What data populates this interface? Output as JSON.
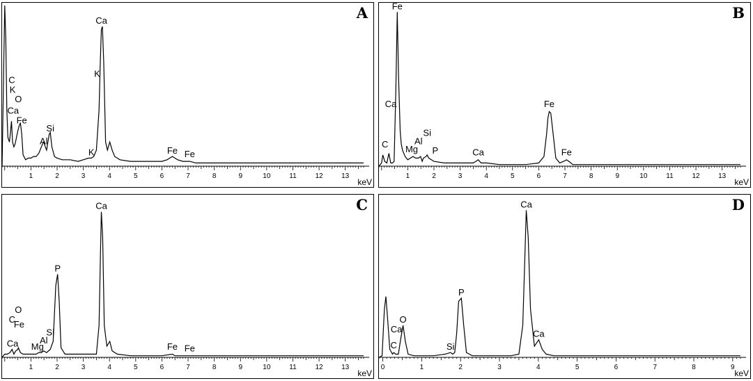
{
  "chart_data": [
    {
      "type": "line",
      "panel_label": "A",
      "xlabel": "keV",
      "xlim": [
        -0.1,
        13.7
      ],
      "ylim": [
        0,
        1.0
      ],
      "xticks": [
        1,
        2,
        3,
        4,
        5,
        6,
        7,
        8,
        9,
        10,
        11,
        12,
        13
      ],
      "series": [
        {
          "x": [
            -0.1,
            0.0,
            0.04,
            0.08,
            0.12,
            0.18,
            0.22,
            0.26,
            0.3,
            0.35,
            0.4,
            0.45,
            0.5,
            0.55,
            0.6,
            0.65,
            0.7,
            0.8,
            0.9,
            1.0,
            1.1,
            1.2,
            1.3,
            1.4,
            1.45,
            1.49,
            1.55,
            1.6,
            1.65,
            1.7,
            1.74,
            1.8,
            1.9,
            2.0,
            2.2,
            2.5,
            2.8,
            3.0,
            3.2,
            3.31,
            3.4,
            3.5,
            3.6,
            3.65,
            3.69,
            3.73,
            3.78,
            3.85,
            3.92,
            4.01,
            4.1,
            4.2,
            4.4,
            4.8,
            5.2,
            5.6,
            6.0,
            6.2,
            6.3,
            6.4,
            6.5,
            6.6,
            6.8,
            7.06,
            7.3,
            7.6,
            8.0,
            9.0,
            10.0,
            11.0,
            12.0,
            13.0,
            13.7
          ],
          "values": [
            0.0,
            1.0,
            0.8,
            0.35,
            0.18,
            0.15,
            0.21,
            0.28,
            0.15,
            0.12,
            0.14,
            0.18,
            0.22,
            0.25,
            0.27,
            0.2,
            0.07,
            0.04,
            0.05,
            0.05,
            0.06,
            0.06,
            0.08,
            0.12,
            0.14,
            0.15,
            0.12,
            0.1,
            0.15,
            0.2,
            0.21,
            0.12,
            0.06,
            0.05,
            0.04,
            0.04,
            0.03,
            0.04,
            0.05,
            0.05,
            0.06,
            0.1,
            0.35,
            0.65,
            0.85,
            0.87,
            0.65,
            0.15,
            0.1,
            0.15,
            0.1,
            0.06,
            0.04,
            0.03,
            0.03,
            0.03,
            0.03,
            0.04,
            0.05,
            0.06,
            0.05,
            0.04,
            0.03,
            0.03,
            0.02,
            0.02,
            0.02,
            0.02,
            0.02,
            0.02,
            0.02,
            0.02,
            0.02
          ]
        }
      ],
      "peak_labels": [
        {
          "text": "C",
          "x": 0.27,
          "y": 0.5
        },
        {
          "text": "K",
          "x": 0.3,
          "y": 0.44
        },
        {
          "text": "O",
          "x": 0.52,
          "y": 0.38
        },
        {
          "text": "Ca",
          "x": 0.32,
          "y": 0.31
        },
        {
          "text": "Fe",
          "x": 0.65,
          "y": 0.25
        },
        {
          "text": "Al",
          "x": 1.49,
          "y": 0.12
        },
        {
          "text": "Si",
          "x": 1.74,
          "y": 0.2
        },
        {
          "text": "K",
          "x": 3.31,
          "y": 0.05
        },
        {
          "text": "K",
          "x": 3.53,
          "y": 0.54
        },
        {
          "text": "Ca",
          "x": 3.69,
          "y": 0.87
        },
        {
          "text": "Fe",
          "x": 6.4,
          "y": 0.06
        },
        {
          "text": "Fe",
          "x": 7.06,
          "y": 0.04
        }
      ]
    },
    {
      "type": "line",
      "panel_label": "B",
      "xlabel": "keV",
      "xlim": [
        -0.1,
        13.7
      ],
      "ylim": [
        0,
        1.0
      ],
      "xticks": [
        1,
        2,
        3,
        4,
        5,
        6,
        7,
        8,
        9,
        10,
        11,
        12,
        13
      ],
      "series": [
        {
          "x": [
            -0.1,
            0.0,
            0.05,
            0.12,
            0.2,
            0.28,
            0.35,
            0.42,
            0.48,
            0.55,
            0.6,
            0.65,
            0.71,
            0.75,
            0.8,
            0.9,
            1.0,
            1.1,
            1.2,
            1.3,
            1.41,
            1.49,
            1.55,
            1.6,
            1.7,
            1.74,
            1.8,
            2.0,
            2.4,
            3.0,
            3.5,
            3.6,
            3.69,
            3.8,
            4.0,
            4.5,
            5.0,
            5.5,
            6.0,
            6.2,
            6.3,
            6.35,
            6.4,
            6.46,
            6.55,
            6.65,
            6.8,
            6.95,
            7.06,
            7.15,
            7.3,
            7.6,
            8.0,
            9.0,
            10.0,
            11.0,
            12.0,
            13.0,
            13.7
          ],
          "values": [
            0.0,
            0.02,
            0.07,
            0.03,
            0.02,
            0.08,
            0.02,
            0.02,
            0.03,
            0.5,
            0.96,
            0.55,
            0.22,
            0.14,
            0.1,
            0.06,
            0.04,
            0.05,
            0.06,
            0.05,
            0.05,
            0.06,
            0.03,
            0.05,
            0.06,
            0.07,
            0.05,
            0.03,
            0.02,
            0.02,
            0.02,
            0.03,
            0.04,
            0.02,
            0.02,
            0.01,
            0.01,
            0.01,
            0.02,
            0.06,
            0.2,
            0.3,
            0.34,
            0.33,
            0.2,
            0.05,
            0.02,
            0.03,
            0.04,
            0.03,
            0.01,
            0.01,
            0.01,
            0.01,
            0.01,
            0.01,
            0.01,
            0.01,
            0.01
          ]
        }
      ],
      "peak_labels": [
        {
          "text": "Fe",
          "x": 0.6,
          "y": 0.96
        },
        {
          "text": "Ca",
          "x": 0.35,
          "y": 0.35
        },
        {
          "text": "C",
          "x": 0.13,
          "y": 0.1
        },
        {
          "text": "Mg",
          "x": 1.15,
          "y": 0.07
        },
        {
          "text": "Al",
          "x": 1.41,
          "y": 0.12
        },
        {
          "text": "Si",
          "x": 1.74,
          "y": 0.17
        },
        {
          "text": "P",
          "x": 2.05,
          "y": 0.06
        },
        {
          "text": "Ca",
          "x": 3.69,
          "y": 0.05
        },
        {
          "text": "Fe",
          "x": 6.4,
          "y": 0.35
        },
        {
          "text": "Fe",
          "x": 7.06,
          "y": 0.05
        }
      ]
    },
    {
      "type": "line",
      "panel_label": "C",
      "xlabel": "keV",
      "xlim": [
        -0.1,
        13.7
      ],
      "ylim": [
        0,
        1.0
      ],
      "xticks": [
        1,
        2,
        3,
        4,
        5,
        6,
        7,
        8,
        9,
        10,
        11,
        12,
        13
      ],
      "series": [
        {
          "x": [
            -0.1,
            0.0,
            0.1,
            0.2,
            0.28,
            0.35,
            0.42,
            0.5,
            0.52,
            0.6,
            0.7,
            0.8,
            0.9,
            1.0,
            1.1,
            1.2,
            1.3,
            1.4,
            1.49,
            1.6,
            1.74,
            1.85,
            1.95,
            2.02,
            2.08,
            2.15,
            2.3,
            2.6,
            3.0,
            3.3,
            3.5,
            3.6,
            3.65,
            3.69,
            3.74,
            3.8,
            3.9,
            4.01,
            4.1,
            4.3,
            4.8,
            5.5,
            6.0,
            6.4,
            6.5,
            7.0,
            8.0,
            9.0,
            10.0,
            11.0,
            12.0,
            13.0,
            13.7
          ],
          "values": [
            0.0,
            0.02,
            0.02,
            0.03,
            0.05,
            0.02,
            0.04,
            0.05,
            0.06,
            0.03,
            0.02,
            0.02,
            0.02,
            0.02,
            0.02,
            0.02,
            0.03,
            0.03,
            0.04,
            0.03,
            0.05,
            0.1,
            0.45,
            0.52,
            0.35,
            0.06,
            0.02,
            0.02,
            0.02,
            0.02,
            0.02,
            0.2,
            0.6,
            0.91,
            0.75,
            0.2,
            0.07,
            0.1,
            0.04,
            0.02,
            0.01,
            0.01,
            0.01,
            0.02,
            0.01,
            0.01,
            0.01,
            0.01,
            0.01,
            0.01,
            0.01,
            0.01,
            0.01
          ]
        }
      ],
      "peak_labels": [
        {
          "text": "O",
          "x": 0.52,
          "y": 0.26
        },
        {
          "text": "C",
          "x": 0.28,
          "y": 0.2
        },
        {
          "text": "Fe",
          "x": 0.55,
          "y": 0.17
        },
        {
          "text": "Si",
          "x": 1.74,
          "y": 0.12
        },
        {
          "text": "Al",
          "x": 1.49,
          "y": 0.07
        },
        {
          "text": "Ca",
          "x": 0.3,
          "y": 0.05
        },
        {
          "text": "Mg",
          "x": 1.25,
          "y": 0.03
        },
        {
          "text": "P",
          "x": 2.02,
          "y": 0.52
        },
        {
          "text": "Ca",
          "x": 3.69,
          "y": 0.91
        },
        {
          "text": "Fe",
          "x": 6.4,
          "y": 0.03
        },
        {
          "text": "Fe",
          "x": 7.06,
          "y": 0.02
        }
      ]
    },
    {
      "type": "line",
      "panel_label": "D",
      "xlabel": "keV",
      "xlim": [
        -0.1,
        9.2
      ],
      "ylim": [
        0,
        1.0
      ],
      "xticks": [
        0,
        1,
        2,
        3,
        4,
        5,
        6,
        7,
        8,
        9
      ],
      "series": [
        {
          "x": [
            -0.1,
            -0.02,
            0.04,
            0.08,
            0.12,
            0.18,
            0.25,
            0.28,
            0.33,
            0.4,
            0.45,
            0.52,
            0.58,
            0.65,
            0.8,
            1.0,
            1.3,
            1.6,
            1.74,
            1.8,
            1.85,
            1.9,
            1.95,
            2.02,
            2.08,
            2.15,
            2.3,
            2.6,
            3.0,
            3.3,
            3.5,
            3.6,
            3.65,
            3.69,
            3.74,
            3.8,
            3.9,
            4.01,
            4.1,
            4.2,
            4.4,
            5.0,
            6.0,
            7.0,
            8.0,
            9.0,
            9.2
          ],
          "values": [
            0.0,
            0.01,
            0.3,
            0.38,
            0.25,
            0.05,
            0.02,
            0.03,
            0.02,
            0.02,
            0.1,
            0.2,
            0.1,
            0.02,
            0.01,
            0.01,
            0.01,
            0.02,
            0.03,
            0.02,
            0.03,
            0.15,
            0.35,
            0.37,
            0.2,
            0.03,
            0.01,
            0.01,
            0.01,
            0.01,
            0.02,
            0.2,
            0.6,
            0.92,
            0.75,
            0.3,
            0.07,
            0.11,
            0.05,
            0.02,
            0.01,
            0.01,
            0.01,
            0.01,
            0.01,
            0.01,
            0.01
          ]
        }
      ],
      "peak_labels": [
        {
          "text": "O",
          "x": 0.52,
          "y": 0.2
        },
        {
          "text": "Ca",
          "x": 0.35,
          "y": 0.14
        },
        {
          "text": "C",
          "x": 0.28,
          "y": 0.04
        },
        {
          "text": "Si",
          "x": 1.74,
          "y": 0.03
        },
        {
          "text": "P",
          "x": 2.02,
          "y": 0.37
        },
        {
          "text": "Ca",
          "x": 3.69,
          "y": 0.92
        },
        {
          "text": "Ca",
          "x": 4.01,
          "y": 0.11
        }
      ]
    }
  ]
}
